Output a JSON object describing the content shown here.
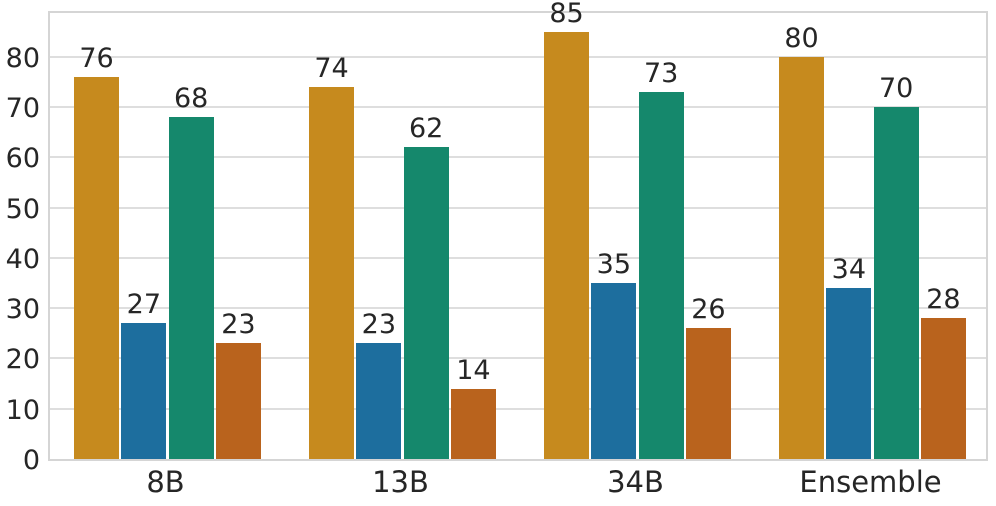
{
  "figure": {
    "background_color": "#ffffff",
    "text_color": "#262626",
    "grid_color": "#dedede",
    "spine_color": "#d5d5d5"
  },
  "chart_data": {
    "type": "bar",
    "title": "",
    "xlabel": "",
    "ylabel": "",
    "categories": [
      "8B",
      "13B",
      "34B",
      "Ensemble"
    ],
    "series": [
      {
        "name": "gold",
        "color": "#C68A1E",
        "values": [
          76,
          74,
          85,
          80
        ]
      },
      {
        "name": "blue",
        "color": "#1D6E9E",
        "values": [
          27,
          23,
          35,
          34
        ]
      },
      {
        "name": "green",
        "color": "#15886C",
        "values": [
          68,
          62,
          73,
          70
        ]
      },
      {
        "name": "rust",
        "color": "#B9631D",
        "values": [
          23,
          14,
          26,
          28
        ]
      }
    ],
    "bar_value_labels": [
      [
        "76",
        "74",
        "85",
        "80"
      ],
      [
        "27",
        "23",
        "35",
        "34"
      ],
      [
        "68",
        "62",
        "73",
        "70"
      ],
      [
        "23",
        "14",
        "26",
        "28"
      ]
    ],
    "yticks": [
      "0",
      "10",
      "20",
      "30",
      "40",
      "50",
      "60",
      "70",
      "80"
    ],
    "ylim": [
      0,
      89.5
    ],
    "grid": "horizontal",
    "legend": "none"
  }
}
